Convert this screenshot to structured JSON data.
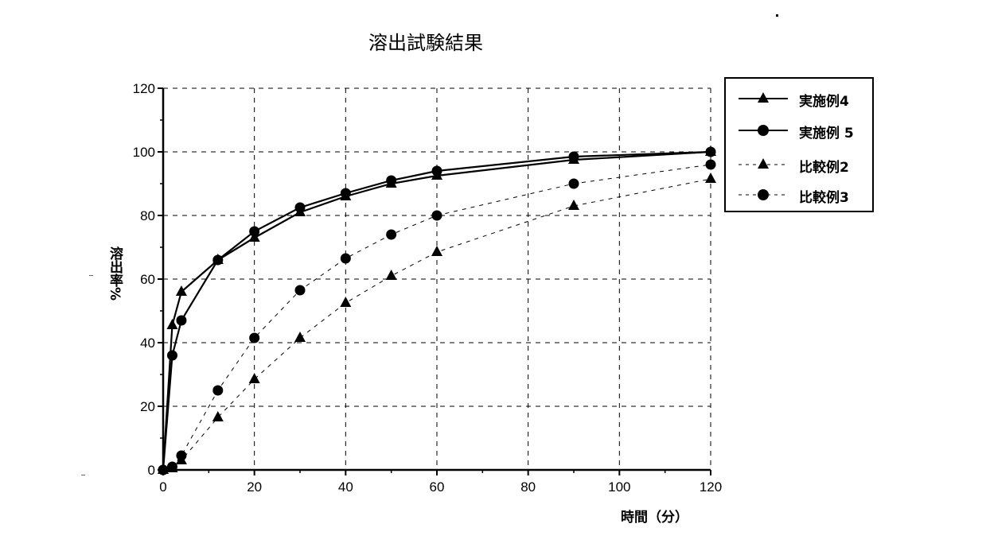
{
  "chart_data": {
    "type": "line",
    "title": "溶出試験結果",
    "xlabel": "時間（分）",
    "ylabel": "溶出率%",
    "xlim": [
      0,
      120
    ],
    "ylim": [
      0,
      120
    ],
    "xticks": [
      0,
      20,
      40,
      60,
      80,
      100,
      120
    ],
    "yticks": [
      0,
      20,
      40,
      60,
      80,
      100,
      120
    ],
    "grid": true,
    "legend_position": "right",
    "x": [
      0,
      2,
      4,
      12,
      20,
      30,
      40,
      50,
      60,
      90,
      120
    ],
    "series": [
      {
        "name": "実施例4",
        "marker": "triangle",
        "line": "solid",
        "values": [
          0,
          45.5,
          56,
          66,
          73,
          81,
          86,
          90,
          92.5,
          97.5,
          100
        ]
      },
      {
        "name": "実施例 5",
        "marker": "circle",
        "line": "solid",
        "values": [
          0,
          36,
          47,
          66,
          75,
          82.5,
          87,
          91,
          94,
          98.5,
          100
        ]
      },
      {
        "name": "比較例2",
        "marker": "triangle",
        "line": "dashed",
        "values": [
          0,
          0.5,
          3,
          16.5,
          28.5,
          41.5,
          52.5,
          61,
          68.5,
          83,
          91.5
        ]
      },
      {
        "name": "比較例3",
        "marker": "circle",
        "line": "dashed",
        "values": [
          0,
          1,
          4.5,
          25,
          41.5,
          56.5,
          66.5,
          74,
          80,
          90,
          96
        ]
      }
    ]
  }
}
